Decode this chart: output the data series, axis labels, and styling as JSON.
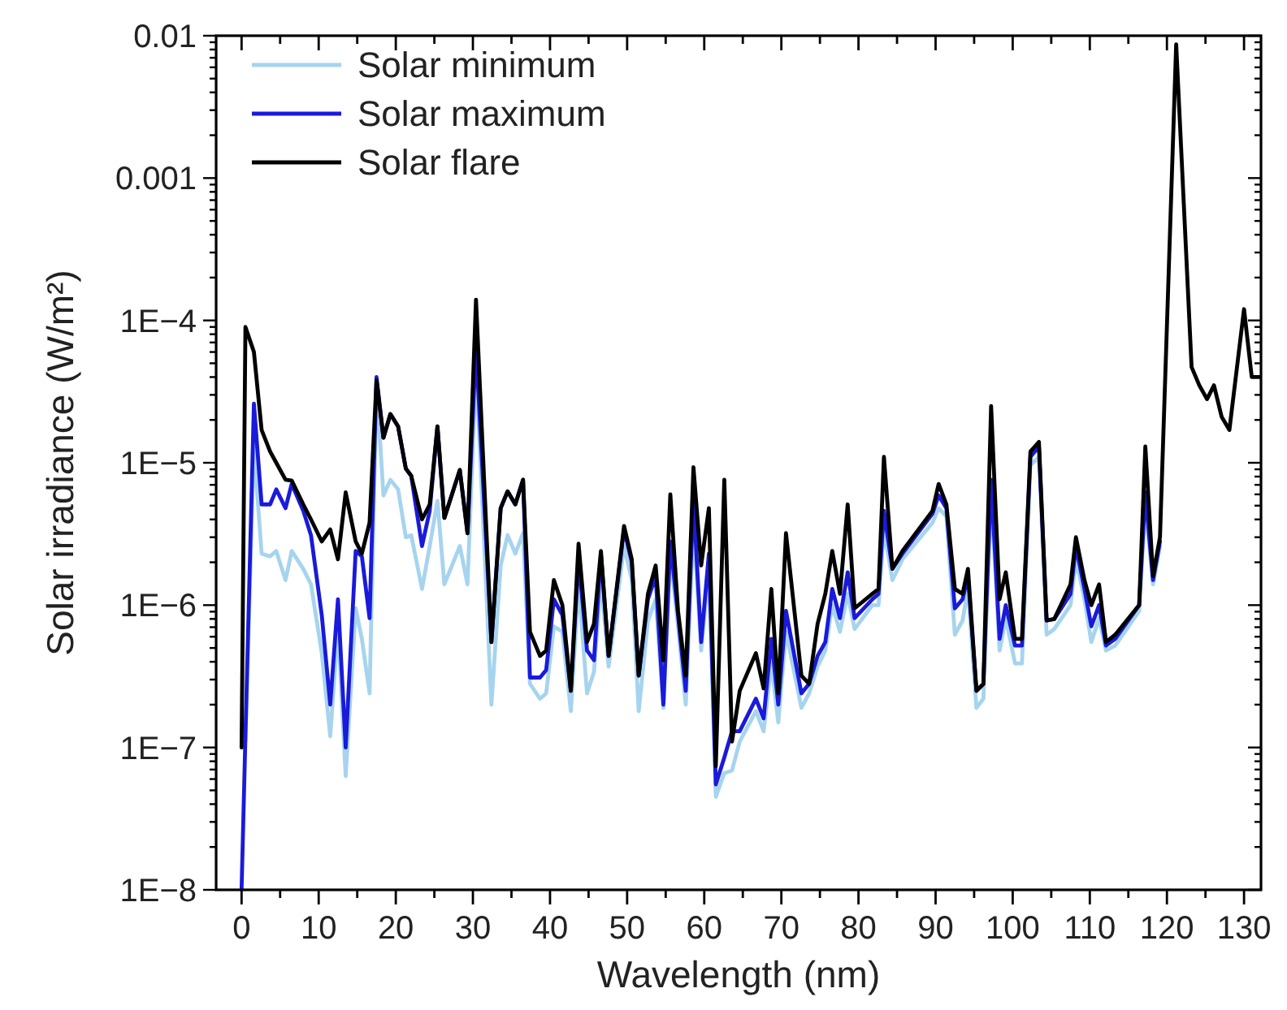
{
  "chart_data": {
    "type": "line",
    "xlabel": "Wavelength (nm)",
    "ylabel": "Solar irradiance (W/m²)",
    "log": "y",
    "legend": "top left",
    "grid": false,
    "line_style": "solid",
    "marker": "none",
    "x": [
      0,
      0.5,
      1.6,
      2.6,
      3.7,
      4.5,
      5.7,
      6.5,
      8,
      9,
      10.4,
      11.5,
      12.5,
      13.5,
      14.8,
      15.6,
      16.6,
      17.5,
      18.4,
      19.3,
      20.3,
      21.3,
      22,
      23.4,
      24.4,
      25.4,
      26.3,
      28.3,
      29.3,
      30.4,
      32.4,
      33.6,
      34.5,
      35.5,
      36.5,
      37.4,
      38.7,
      39.5,
      40.5,
      41.6,
      42.7,
      43.7,
      44.8,
      45.7,
      46.6,
      47.6,
      49.6,
      50.6,
      51.5,
      52.7,
      53.7,
      54.7,
      55.6,
      56.6,
      57.6,
      58.6,
      59.6,
      60.6,
      61.5,
      62.6,
      63.6,
      64.6,
      66.7,
      67.7,
      68.7,
      69.6,
      70.6,
      72.6,
      73.6,
      74.7,
      75.7,
      76.6,
      77.6,
      78.6,
      79.5,
      81.8,
      82.6,
      83.3,
      84.4,
      85.7,
      89.6,
      90.4,
      91.4,
      92.5,
      93.5,
      94.2,
      95.3,
      96.2,
      97.2,
      98.3,
      99.1,
      100.3,
      101.2,
      102.3,
      103.4,
      104.4,
      105.4,
      107.5,
      108.2,
      109.3,
      110.2,
      111.2,
      112.1,
      113.3,
      116.4,
      117.2,
      118.2,
      119.1,
      121.2,
      123.2,
      124.2,
      125.2,
      126.1,
      127.1,
      128.1,
      130,
      131,
      132.2
    ],
    "series": [
      {
        "name": "Solar minimum",
        "color": "#a6d4ee",
        "values": [
          null,
          1.1e-07,
          1.3e-05,
          2.3e-06,
          2.2e-06,
          2.4e-06,
          1.5e-06,
          2.4e-06,
          1.8e-06,
          1.4e-06,
          4.6e-07,
          1.2e-07,
          7.1e-07,
          6.3e-08,
          9.5e-07,
          5.8e-07,
          2.4e-07,
          3.6e-05,
          5.9e-06,
          7.6e-06,
          6.5e-06,
          3e-06,
          3.1e-06,
          1.3e-06,
          2.6e-06,
          5.4e-06,
          1.4e-06,
          2.6e-06,
          1.4e-06,
          4.9e-05,
          2e-07,
          1.9e-06,
          3.1e-06,
          2.3e-06,
          3.2e-06,
          2.8e-07,
          2.2e-07,
          2.4e-07,
          7.1e-07,
          6.5e-07,
          1.8e-07,
          1.4e-06,
          2.4e-07,
          3.4e-07,
          1.5e-06,
          3.7e-07,
          2.6e-06,
          1.5e-06,
          1.8e-07,
          7.8e-07,
          1.1e-06,
          1.9e-07,
          2.3e-06,
          7.1e-07,
          2e-07,
          3.8e-06,
          4.8e-07,
          1.8e-06,
          4.5e-08,
          6.6e-08,
          6.9e-08,
          1.1e-07,
          1.8e-07,
          1.3e-07,
          3.9e-07,
          1.5e-07,
          6.5e-07,
          1.9e-07,
          2.4e-07,
          3.7e-07,
          4.8e-07,
          1e-06,
          6.5e-07,
          1.2e-06,
          6.8e-07,
          1e-06,
          1e-06,
          3.4e-06,
          1.5e-06,
          2.1e-06,
          3.8e-06,
          4.8e-06,
          4.2e-06,
          6.2e-07,
          7.8e-07,
          1.3e-06,
          1.9e-07,
          2.2e-07,
          6.2e-06,
          4.8e-07,
          8.1e-07,
          3.9e-07,
          3.9e-07,
          9.6e-06,
          1.1e-05,
          6.2e-07,
          6.8e-07,
          1e-06,
          2.1e-06,
          1.1e-06,
          5.5e-07,
          8.1e-07,
          4.8e-07,
          5.2e-07,
          9.1e-07,
          5.1e-06,
          1.4e-06,
          2.6e-06,
          null,
          null,
          null,
          null,
          null,
          null,
          null,
          null,
          null,
          null
        ]
      },
      {
        "name": "Solar maximum",
        "color": "#1a1adb",
        "values": [
          1e-08,
          1.2e-07,
          2.6e-05,
          5.1e-06,
          5.1e-06,
          6.5e-06,
          4.8e-06,
          7.1e-06,
          4.6e-06,
          3.1e-06,
          8.5e-07,
          2e-07,
          1.1e-06,
          1e-07,
          2.4e-06,
          2.2e-06,
          8.1e-07,
          4e-05,
          1.5e-05,
          2.2e-05,
          1.8e-05,
          9.1e-06,
          8.1e-06,
          2.6e-06,
          4.6e-06,
          1.8e-05,
          4.1e-06,
          8.9e-06,
          3.2e-06,
          6.6e-05,
          5.5e-07,
          4.8e-06,
          6.3e-06,
          5.1e-06,
          7.6e-06,
          3.1e-07,
          3.1e-07,
          3.5e-07,
          1.1e-06,
          8.5e-07,
          2.5e-07,
          2.1e-06,
          4.8e-07,
          4.1e-07,
          2.3e-06,
          4.4e-07,
          3.4e-06,
          2e-06,
          3.2e-07,
          1.1e-06,
          1.6e-06,
          2e-07,
          2.8e-06,
          8.5e-07,
          2.5e-07,
          5.6e-06,
          5.5e-07,
          2.3e-06,
          5.5e-08,
          8.5e-08,
          1.3e-07,
          1.3e-07,
          2.2e-07,
          1.6e-07,
          5.8e-07,
          2e-07,
          9.1e-07,
          2.4e-07,
          2.8e-07,
          4.4e-07,
          5.5e-07,
          1.3e-06,
          8.1e-07,
          1.7e-06,
          8.1e-07,
          1.1e-06,
          1.2e-06,
          4.6e-06,
          1.8e-06,
          2.3e-06,
          4.4e-06,
          5.9e-06,
          4.8e-06,
          9.5e-07,
          1.1e-06,
          1.6e-06,
          2.5e-07,
          2.8e-07,
          7.6e-06,
          5.8e-07,
          1e-06,
          5.2e-07,
          5.2e-07,
          1.1e-05,
          1.3e-05,
          7.8e-07,
          8e-07,
          1.2e-06,
          2.6e-06,
          1.3e-06,
          7.1e-07,
          1e-06,
          5.2e-07,
          5.8e-07,
          1e-06,
          6.2e-06,
          1.5e-06,
          2.8e-06,
          null,
          null,
          null,
          null,
          null,
          null,
          null,
          null,
          null,
          null
        ]
      },
      {
        "name": "Solar flare",
        "color": "#000000",
        "values": [
          1e-07,
          9e-05,
          6e-05,
          1.7e-05,
          1.2e-05,
          1e-05,
          7.6e-06,
          7.5e-06,
          5.1e-06,
          4e-06,
          2.8e-06,
          3.4e-06,
          2.1e-06,
          6.2e-06,
          2.8e-06,
          2.3e-06,
          3.8e-06,
          3.8e-05,
          1.5e-05,
          2.2e-05,
          1.8e-05,
          9.1e-06,
          8.1e-06,
          4e-06,
          5.1e-06,
          1.8e-05,
          4.1e-06,
          8.9e-06,
          3.2e-06,
          0.00014,
          5.5e-07,
          4.8e-06,
          6.3e-06,
          5.1e-06,
          7.6e-06,
          6.5e-07,
          4.4e-07,
          4.8e-07,
          1.5e-06,
          1e-06,
          2.5e-07,
          2.7e-06,
          5.5e-07,
          7.4e-07,
          2.4e-06,
          4.4e-07,
          3.6e-06,
          2.1e-06,
          3.2e-07,
          1.2e-06,
          1.9e-06,
          4.1e-07,
          6e-06,
          9.1e-07,
          3.2e-07,
          9.3e-06,
          1.9e-06,
          4.8e-06,
          7.4e-08,
          7.6e-06,
          1.1e-07,
          2.5e-07,
          4.6e-07,
          2.6e-07,
          1.3e-06,
          2.4e-07,
          3.2e-06,
          3.2e-07,
          2.8e-07,
          7.4e-07,
          1.2e-06,
          2.4e-06,
          1.2e-06,
          5.1e-06,
          9.5e-07,
          1.2e-06,
          1.3e-06,
          1.1e-05,
          1.8e-06,
          2.4e-06,
          4.6e-06,
          7.1e-06,
          5.1e-06,
          1.3e-06,
          1.2e-06,
          1.8e-06,
          2.5e-07,
          2.8e-07,
          2.5e-05,
          1.1e-06,
          1.7e-06,
          5.8e-07,
          5.8e-07,
          1.2e-05,
          1.4e-05,
          7.8e-07,
          8e-07,
          1.4e-06,
          3e-06,
          1.5e-06,
          1e-06,
          1.4e-06,
          5.5e-07,
          6.2e-07,
          1e-06,
          1.3e-05,
          1.6e-06,
          3e-06,
          0.0087,
          4.7e-05,
          3.5e-05,
          2.8e-05,
          3.5e-05,
          2.1e-05,
          1.7e-05,
          0.00012,
          4e-05,
          4e-05
        ]
      }
    ],
    "xlim": [
      -3.3,
      132.2
    ],
    "xticks": [
      0,
      {
        "value": 5,
        "label": null
      },
      10,
      {
        "value": 15,
        "label": null
      },
      20,
      {
        "value": 25,
        "label": null
      },
      30,
      {
        "value": 35,
        "label": null
      },
      40,
      {
        "value": 45,
        "label": null
      },
      50,
      {
        "value": 55,
        "label": null
      },
      60,
      {
        "value": 65,
        "label": null
      },
      70,
      {
        "value": 75,
        "label": null
      },
      80,
      {
        "value": 85,
        "label": null
      },
      90,
      {
        "value": 95,
        "label": null
      },
      100,
      {
        "value": 105,
        "label": null
      },
      110,
      {
        "value": 115,
        "label": null
      },
      120,
      {
        "value": 125,
        "label": null
      },
      130
    ],
    "ylim": [
      1e-08,
      0.01
    ],
    "yticks": [
      {
        "value": 1e-08,
        "label": "1E−8"
      },
      {
        "value": 2e-08,
        "label": null
      },
      {
        "value": 3e-08,
        "label": null
      },
      {
        "value": 4e-08,
        "label": null
      },
      {
        "value": 5e-08,
        "label": null
      },
      {
        "value": 6e-08,
        "label": null
      },
      {
        "value": 7e-08,
        "label": null
      },
      {
        "value": 8e-08,
        "label": null
      },
      {
        "value": 9e-08,
        "label": null
      },
      {
        "value": 1e-07,
        "label": "1E−7"
      },
      {
        "value": 2e-07,
        "label": null
      },
      {
        "value": 3e-07,
        "label": null
      },
      {
        "value": 4e-07,
        "label": null
      },
      {
        "value": 5e-07,
        "label": null
      },
      {
        "value": 6e-07,
        "label": null
      },
      {
        "value": 7e-07,
        "label": null
      },
      {
        "value": 8e-07,
        "label": null
      },
      {
        "value": 9e-07,
        "label": null
      },
      {
        "value": 1e-06,
        "label": "1E−6"
      },
      {
        "value": 2e-06,
        "label": null
      },
      {
        "value": 3e-06,
        "label": null
      },
      {
        "value": 4e-06,
        "label": null
      },
      {
        "value": 5e-06,
        "label": null
      },
      {
        "value": 6e-06,
        "label": null
      },
      {
        "value": 7e-06,
        "label": null
      },
      {
        "value": 8e-06,
        "label": null
      },
      {
        "value": 9e-06,
        "label": null
      },
      {
        "value": 1e-05,
        "label": "1E−5"
      },
      {
        "value": 2e-05,
        "label": null
      },
      {
        "value": 3e-05,
        "label": null
      },
      {
        "value": 4e-05,
        "label": null
      },
      {
        "value": 5e-05,
        "label": null
      },
      {
        "value": 6e-05,
        "label": null
      },
      {
        "value": 7e-05,
        "label": null
      },
      {
        "value": 8e-05,
        "label": null
      },
      {
        "value": 9e-05,
        "label": null
      },
      {
        "value": 0.0001,
        "label": "1E−4"
      },
      {
        "value": 0.0002,
        "label": null
      },
      {
        "value": 0.0003,
        "label": null
      },
      {
        "value": 0.0004,
        "label": null
      },
      {
        "value": 0.0005,
        "label": null
      },
      {
        "value": 0.0006,
        "label": null
      },
      {
        "value": 0.0007,
        "label": null
      },
      {
        "value": 0.0008,
        "label": null
      },
      {
        "value": 0.0009,
        "label": null
      },
      {
        "value": 0.001,
        "label": "0.001"
      },
      {
        "value": 0.002,
        "label": null
      },
      {
        "value": 0.003,
        "label": null
      },
      {
        "value": 0.004,
        "label": null
      },
      {
        "value": 0.005,
        "label": null
      },
      {
        "value": 0.006,
        "label": null
      },
      {
        "value": 0.007,
        "label": null
      },
      {
        "value": 0.008,
        "label": null
      },
      {
        "value": 0.009,
        "label": null
      },
      0.01
    ]
  }
}
